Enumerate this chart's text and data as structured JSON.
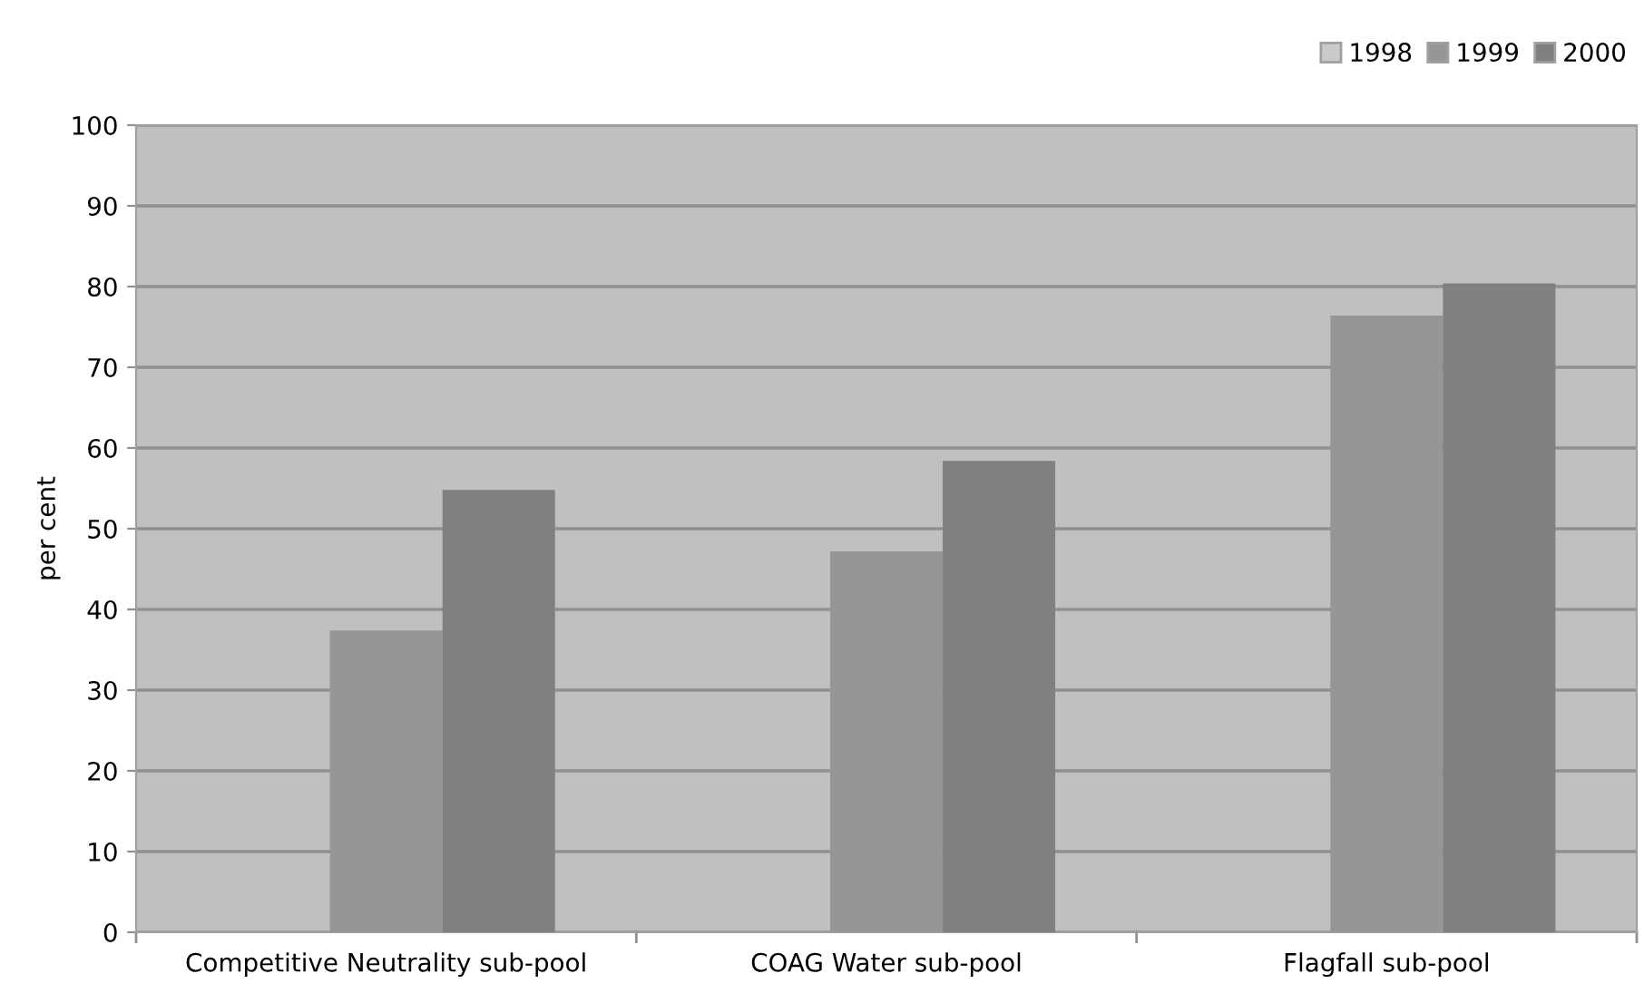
{
  "chart_data": {
    "type": "bar",
    "ylabel": "per cent",
    "categories": [
      "Competitive Neutrality sub-pool",
      "COAG Water sub-pool",
      "Flagfall sub-pool"
    ],
    "series": [
      {
        "name": "1998",
        "color": "#cacaca",
        "values": [
          null,
          null,
          null
        ]
      },
      {
        "name": "1999",
        "color": "#969696",
        "values": [
          37.4,
          47.2,
          76.4
        ]
      },
      {
        "name": "2000",
        "color": "#808080",
        "values": [
          54.8,
          58.4,
          80.4
        ]
      }
    ],
    "ylim": [
      0,
      100
    ],
    "yticks": [
      0,
      10,
      20,
      30,
      40,
      50,
      60,
      70,
      80,
      90,
      100
    ],
    "grid": "y",
    "legend": "top right"
  }
}
